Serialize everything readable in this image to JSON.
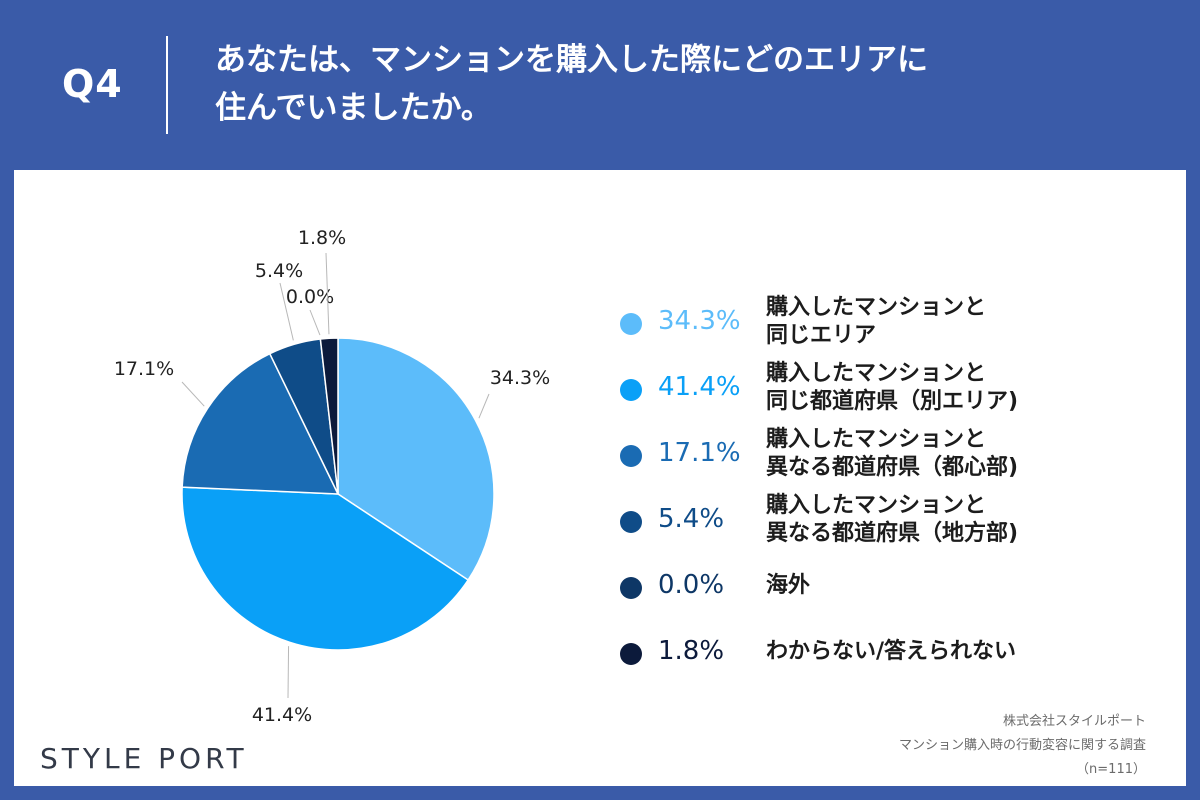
{
  "header": {
    "question_number": "Q4",
    "title_line1": "あなたは、マンションを購入した際にどのエリアに",
    "title_line2": "住んでいましたか。"
  },
  "chart_data": {
    "type": "pie",
    "categories": [
      "購入したマンションと同じエリア",
      "購入したマンションと同じ都道府県（別エリア)",
      "購入したマンションと異なる都道府県（都心部)",
      "購入したマンションと異なる都道府県（地方部)",
      "海外",
      "わからない/答えられない"
    ],
    "values": [
      34.3,
      41.4,
      17.1,
      5.4,
      0.0,
      1.8
    ],
    "value_labels": [
      "34.3%",
      "41.4%",
      "17.1%",
      "5.4%",
      "0.0%",
      "1.8%"
    ],
    "colors": [
      "#5cbcfa",
      "#0aa0f7",
      "#1a6bb3",
      "#0f4c88",
      "#0e3766",
      "#0c1a3b"
    ],
    "legend_placement": "right"
  },
  "legend": [
    {
      "pct": "34.3%",
      "line1": "購入したマンションと",
      "line2": "同じエリア",
      "color": "#5cbcfa"
    },
    {
      "pct": "41.4%",
      "line1": "購入したマンションと",
      "line2": "同じ都道府県（別エリア)",
      "color": "#0aa0f7"
    },
    {
      "pct": "17.1%",
      "line1": "購入したマンションと",
      "line2": "異なる都道府県（都心部)",
      "color": "#1a6bb3"
    },
    {
      "pct": "5.4%",
      "line1": "購入したマンションと",
      "line2": "異なる都道府県（地方部)",
      "color": "#0f4c88"
    },
    {
      "pct": "0.0%",
      "line1": "海外",
      "line2": "",
      "color": "#0e3766"
    },
    {
      "pct": "1.8%",
      "line1": "わからない/答えられない",
      "line2": "",
      "color": "#0c1a3b"
    }
  ],
  "footer": {
    "brand": "STYLE PORT",
    "source_line1": "株式会社スタイルポート",
    "source_line2": "マンション購入時の行動変容に関する調査",
    "source_line3": "（n=111）"
  },
  "colors": {
    "background": "#3a5ba8",
    "panel": "#ffffff",
    "header_text": "#ffffff"
  }
}
